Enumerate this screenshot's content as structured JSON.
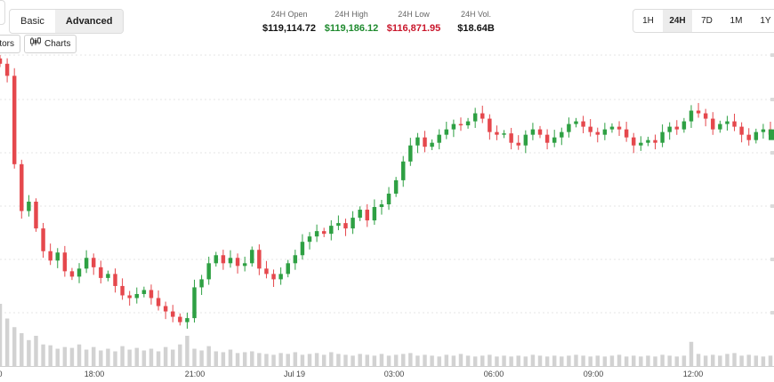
{
  "mode_toggle": {
    "options": [
      "Basic",
      "Advanced"
    ],
    "active": "Advanced"
  },
  "toolbar": {
    "indicators_label": "ators",
    "charts_label": "Charts"
  },
  "stats": [
    {
      "label": "24H Open",
      "value": "$119,114.72",
      "color": "#111111"
    },
    {
      "label": "24H High",
      "value": "$119,186.12",
      "color": "#1e8a2e"
    },
    {
      "label": "24H Low",
      "value": "$116,871.95",
      "color": "#c9162b"
    },
    {
      "label": "24H Vol.",
      "value": "$18.64B",
      "color": "#111111"
    }
  ],
  "ranges": {
    "options": [
      "1H",
      "24H",
      "7D",
      "1M",
      "1Y"
    ],
    "active": "24H"
  },
  "colors": {
    "up": "#2ea043",
    "down": "#e5484d",
    "volume": "#d2d2d2",
    "grid": "#e6e6e6"
  },
  "chart_data": {
    "type": "candlestick",
    "x_tick_labels": [
      "18:00",
      "21:00",
      "Jul 19",
      "03:00",
      "06:00",
      "09:00",
      "12:00"
    ],
    "grid": true,
    "closes": [
      119050,
      118960,
      118300,
      117950,
      118020,
      117820,
      117650,
      117580,
      117640,
      117500,
      117460,
      117520,
      117600,
      117530,
      117450,
      117480,
      117390,
      117320,
      117300,
      117330,
      117360,
      117300,
      117240,
      117200,
      117160,
      117120,
      117150,
      117380,
      117440,
      117560,
      117620,
      117560,
      117600,
      117540,
      117560,
      117660,
      117520,
      117480,
      117440,
      117480,
      117560,
      117620,
      117720,
      117760,
      117800,
      117780,
      117840,
      117860,
      117820,
      117900,
      117960,
      117880,
      117980,
      118000,
      118080,
      118180,
      118320,
      118440,
      118500,
      118430,
      118460,
      118520,
      118560,
      118600,
      118590,
      118620,
      118680,
      118640,
      118540,
      118520,
      118530,
      118460,
      118440,
      118520,
      118560,
      118520,
      118460,
      118500,
      118540,
      118600,
      118620,
      118580,
      118540,
      118520,
      118560,
      118580,
      118560,
      118500,
      118440,
      118460,
      118480,
      118460,
      118540,
      118580,
      118560,
      118620,
      118700,
      118680,
      118640,
      118560,
      118600,
      118620,
      118580,
      118520,
      118480,
      118540,
      118560,
      118520
    ],
    "volumes": [
      0.72,
      0.55,
      0.45,
      0.38,
      0.3,
      0.35,
      0.25,
      0.24,
      0.2,
      0.22,
      0.21,
      0.25,
      0.19,
      0.22,
      0.18,
      0.2,
      0.17,
      0.23,
      0.19,
      0.21,
      0.18,
      0.2,
      0.17,
      0.22,
      0.19,
      0.25,
      0.35,
      0.2,
      0.18,
      0.23,
      0.17,
      0.16,
      0.19,
      0.15,
      0.16,
      0.17,
      0.15,
      0.14,
      0.13,
      0.15,
      0.14,
      0.16,
      0.13,
      0.14,
      0.15,
      0.13,
      0.16,
      0.14,
      0.13,
      0.12,
      0.14,
      0.13,
      0.12,
      0.14,
      0.12,
      0.13,
      0.14,
      0.15,
      0.12,
      0.13,
      0.12,
      0.11,
      0.13,
      0.12,
      0.14,
      0.12,
      0.11,
      0.12,
      0.13,
      0.11,
      0.12,
      0.11,
      0.12,
      0.11,
      0.13,
      0.12,
      0.11,
      0.12,
      0.11,
      0.12,
      0.13,
      0.12,
      0.11,
      0.12,
      0.11,
      0.12,
      0.13,
      0.11,
      0.12,
      0.11,
      0.12,
      0.11,
      0.13,
      0.12,
      0.11,
      0.12,
      0.28,
      0.14,
      0.12,
      0.13,
      0.12,
      0.14,
      0.15,
      0.12,
      0.13,
      0.12,
      0.11,
      0.12
    ]
  }
}
